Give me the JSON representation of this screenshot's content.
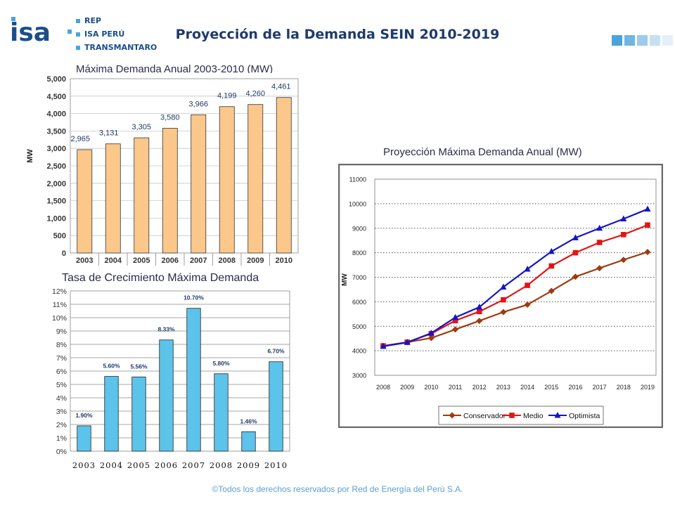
{
  "header": {
    "logo_text": "isa",
    "brands": [
      "REP",
      "ISA PERÚ",
      "TRANSMANTARO"
    ],
    "title": "Proyección de la Demanda SEIN 2010-2019",
    "square_colors": [
      "#4aa3dc",
      "#6fb6e3",
      "#9ccbed",
      "#c6e1f4",
      "#e3f0fa"
    ]
  },
  "footer": {
    "text": "©Todos los derechos reservados por Red de Energía del Perú S.A."
  },
  "colors": {
    "bar_orange": "#fbc78a",
    "bar_blue": "#5cc3ea",
    "conservador": "#9c3c12",
    "medio": "#e31414",
    "optimista": "#1414c8"
  },
  "chart_data": [
    {
      "type": "bar",
      "title": "Máxima Demanda Anual 2003-2010  (MW)",
      "ylabel": "MW",
      "categories": [
        "2003",
        "2004",
        "2005",
        "2006",
        "2007",
        "2008",
        "2009",
        "2010"
      ],
      "values": [
        2965,
        3131,
        3305,
        3580,
        3966,
        4199,
        4260,
        4461
      ],
      "data_labels": [
        "2,965",
        "3,131",
        "3,305",
        "3,580",
        "3,966",
        "4,199",
        "4,260",
        "4,461"
      ],
      "ylim": [
        0,
        5000
      ],
      "yticks": [
        "0",
        "500",
        "1,000",
        "1,500",
        "2,000",
        "2,500",
        "3,000",
        "3,500",
        "4,000",
        "4,500",
        "5,000"
      ],
      "grid": true
    },
    {
      "type": "bar",
      "title": "Tasa de Crecimiento Máxima Demanda",
      "categories": [
        "2003",
        "2004",
        "2005",
        "2006",
        "2007",
        "2008",
        "2009",
        "2010"
      ],
      "values": [
        1.9,
        5.6,
        5.56,
        8.33,
        10.7,
        5.8,
        1.46,
        6.7
      ],
      "data_labels": [
        "1.90%",
        "5.60%",
        "5.56%",
        "8.33%",
        "10.70%",
        "5.80%",
        "1.46%",
        "6.70%"
      ],
      "ylim": [
        0,
        12
      ],
      "yticks": [
        "0%",
        "1%",
        "2%",
        "3%",
        "4%",
        "5%",
        "6%",
        "7%",
        "8%",
        "9%",
        "10%",
        "11%",
        "12%"
      ],
      "grid": true
    },
    {
      "type": "line",
      "title": "Proyección Máxima Demanda Anual (MW)",
      "ylabel": "MW",
      "x": [
        "2008",
        "2009",
        "2010",
        "2011",
        "2012",
        "2013",
        "2014",
        "2015",
        "2016",
        "2017",
        "2018",
        "2019"
      ],
      "ylim": [
        3000,
        11000
      ],
      "yticks": [
        "3000",
        "4000",
        "5000",
        "6000",
        "7000",
        "8000",
        "9000",
        "10000",
        "11000"
      ],
      "series": [
        {
          "name": "Conservador",
          "values": [
            4200,
            4350,
            4520,
            4870,
            5220,
            5580,
            5880,
            6440,
            7020,
            7370,
            7710,
            8030
          ]
        },
        {
          "name": "Medio",
          "values": [
            4200,
            4350,
            4700,
            5230,
            5600,
            6080,
            6670,
            7460,
            8000,
            8420,
            8740,
            9130
          ]
        },
        {
          "name": "Optimista",
          "values": [
            4180,
            4340,
            4720,
            5360,
            5780,
            6600,
            7330,
            8050,
            8610,
            9000,
            9380,
            9780
          ]
        }
      ],
      "legend": "bottom"
    }
  ]
}
